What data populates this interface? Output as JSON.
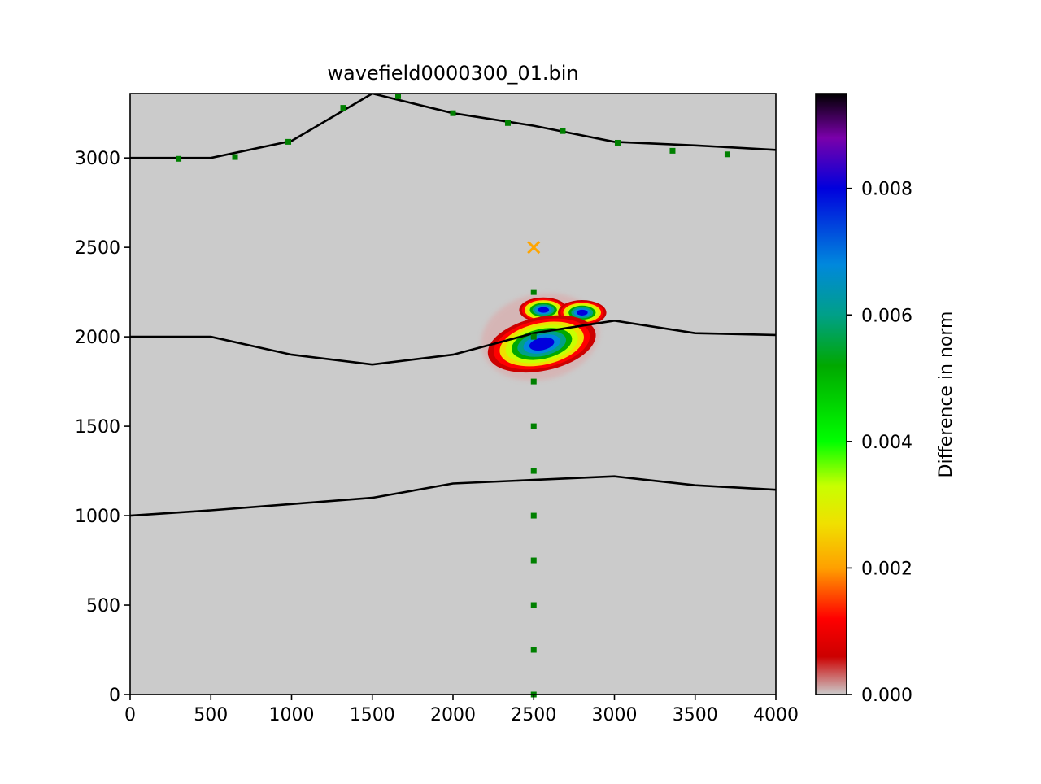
{
  "chart_data": {
    "type": "heatmap",
    "title": "wavefield0000300_01.bin",
    "xlabel": "",
    "ylabel": "",
    "xlim": [
      0,
      4000
    ],
    "ylim": [
      0,
      3360
    ],
    "x_ticks": [
      0,
      500,
      1000,
      1500,
      2000,
      2500,
      3000,
      3500,
      4000
    ],
    "x_tick_labels": [
      "0",
      "500",
      "1000",
      "1500",
      "2000",
      "2500",
      "3000",
      "3500",
      "4000"
    ],
    "y_ticks": [
      0,
      500,
      1000,
      1500,
      2000,
      2500,
      3000
    ],
    "y_tick_labels": [
      "0",
      "500",
      "1000",
      "1500",
      "2000",
      "2500",
      "3000"
    ],
    "background_color": "#cbcbcb",
    "interfaces": [
      [
        [
          0,
          3000
        ],
        [
          500,
          3000
        ],
        [
          1000,
          3095
        ],
        [
          1500,
          3360
        ],
        [
          2000,
          3250
        ],
        [
          2500,
          3180
        ],
        [
          3000,
          3090
        ],
        [
          3500,
          3070
        ],
        [
          4000,
          3045
        ]
      ],
      [
        [
          0,
          2000
        ],
        [
          500,
          2000
        ],
        [
          1000,
          1900
        ],
        [
          1500,
          1845
        ],
        [
          2000,
          1900
        ],
        [
          2500,
          2020
        ],
        [
          3000,
          2090
        ],
        [
          3500,
          2020
        ],
        [
          4000,
          2010
        ]
      ],
      [
        [
          0,
          1000
        ],
        [
          500,
          1030
        ],
        [
          1000,
          1065
        ],
        [
          1500,
          1100
        ],
        [
          2000,
          1180
        ],
        [
          2500,
          1200
        ],
        [
          3000,
          1220
        ],
        [
          3500,
          1170
        ],
        [
          4000,
          1145
        ]
      ]
    ],
    "source": {
      "x": 2500,
      "y": 2500,
      "marker": "x",
      "color": "#ffa500"
    },
    "receivers": {
      "color": "#008000",
      "points": [
        [
          300,
          2995
        ],
        [
          650,
          3005
        ],
        [
          980,
          3090
        ],
        [
          1320,
          3280
        ],
        [
          1660,
          3345
        ],
        [
          2000,
          3250
        ],
        [
          2340,
          3195
        ],
        [
          2680,
          3150
        ],
        [
          3020,
          3085
        ],
        [
          3360,
          3040
        ],
        [
          3700,
          3020
        ],
        [
          2500,
          2250
        ],
        [
          2500,
          2000
        ],
        [
          2500,
          1750
        ],
        [
          2500,
          1500
        ],
        [
          2500,
          1250
        ],
        [
          2500,
          1000
        ],
        [
          2500,
          750
        ],
        [
          2500,
          500
        ],
        [
          2500,
          250
        ],
        [
          2500,
          0
        ]
      ]
    },
    "wavefront": {
      "upper_lobes": [
        {
          "cx": 2560,
          "cy": 2150,
          "rx": 150,
          "ry": 70
        },
        {
          "cx": 2800,
          "cy": 2135,
          "rx": 150,
          "ry": 70
        }
      ],
      "main_lobe": {
        "cx": 2550,
        "cy": 1960,
        "rx": 340,
        "ry": 150,
        "rotation_deg": 12
      },
      "description_levels": [
        0.0,
        0.001,
        0.002,
        0.003,
        0.004,
        0.006,
        0.008,
        0.0095
      ]
    },
    "colorbar": {
      "label": "Difference in norm",
      "min": 0.0,
      "max": 0.0095,
      "ticks": [
        0.0,
        0.002,
        0.004,
        0.006,
        0.008
      ],
      "tick_labels": [
        "0.000",
        "0.002",
        "0.004",
        "0.006",
        "0.008"
      ],
      "stops": [
        {
          "v": 0.0,
          "color": "#cbcbcb"
        },
        {
          "v": 0.0006,
          "color": "#cc0000"
        },
        {
          "v": 0.0012,
          "color": "#ff0000"
        },
        {
          "v": 0.002,
          "color": "#ffa000"
        },
        {
          "v": 0.0027,
          "color": "#f0e000"
        },
        {
          "v": 0.0033,
          "color": "#c8ff00"
        },
        {
          "v": 0.004,
          "color": "#00ff00"
        },
        {
          "v": 0.0052,
          "color": "#00a800"
        },
        {
          "v": 0.006,
          "color": "#00a088"
        },
        {
          "v": 0.0068,
          "color": "#0088dd"
        },
        {
          "v": 0.008,
          "color": "#0000dd"
        },
        {
          "v": 0.0088,
          "color": "#7a00aa"
        },
        {
          "v": 0.0095,
          "color": "#000000"
        }
      ]
    }
  }
}
